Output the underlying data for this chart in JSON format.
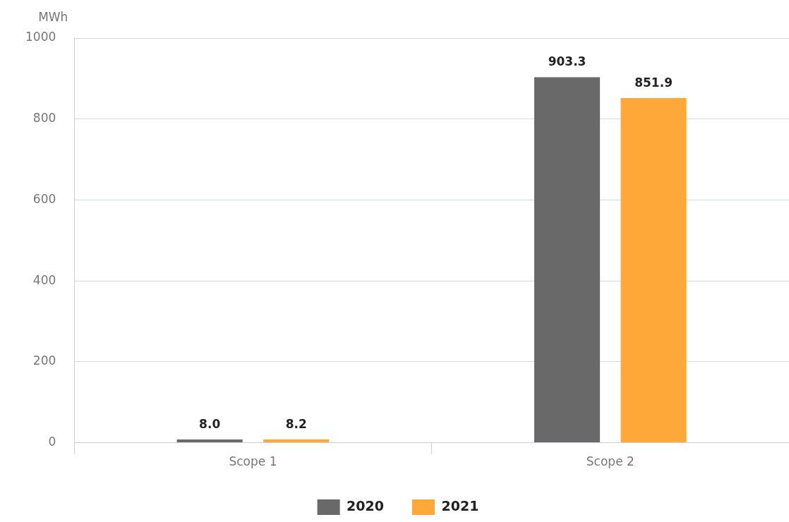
{
  "chart_data": {
    "type": "bar",
    "ylabel": "MWh",
    "categories": [
      "Scope 1",
      "Scope 2"
    ],
    "series": [
      {
        "name": "2020",
        "color": "#696969",
        "values": [
          8.0,
          903.3
        ],
        "value_labels": [
          "8.0",
          "903.3"
        ]
      },
      {
        "name": "2021",
        "color": "#ffa83a",
        "values": [
          8.2,
          851.9
        ],
        "value_labels": [
          "8.2",
          "851.9"
        ]
      }
    ],
    "ylim": [
      0,
      1000
    ],
    "yticks": [
      0,
      200,
      400,
      600,
      800,
      1000
    ],
    "grid": "y",
    "legend": "bottom"
  }
}
